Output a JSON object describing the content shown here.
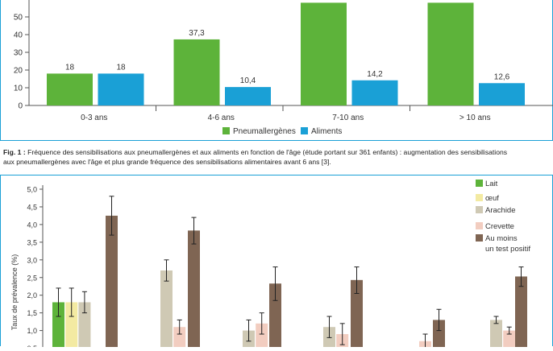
{
  "chart_data": [
    {
      "type": "bar",
      "categories": [
        "0-3 ans",
        "4-6 ans",
        "7-10 ans",
        "> 10 ans"
      ],
      "series": [
        {
          "name": "Pneumallergènes",
          "color": "#5db33a",
          "values": [
            18,
            37.3,
            58,
            58
          ],
          "labels": [
            "18",
            "37,3",
            "",
            ""
          ]
        },
        {
          "name": "Aliments",
          "color": "#1aa0d6",
          "values": [
            18,
            10.4,
            14.2,
            12.6
          ],
          "labels": [
            "18",
            "10,4",
            "14,2",
            "12,6"
          ]
        }
      ],
      "yticks": [
        "0",
        "10",
        "20",
        "30",
        "40",
        "50"
      ],
      "ylim": [
        0,
        58
      ],
      "legend": "bottom-center",
      "grid": false
    },
    {
      "type": "bar",
      "ylabel": "Taux de prévalence (%)",
      "yticks": [
        "0,5",
        "1,0",
        "1,5",
        "2,0",
        "2,5",
        "3,0",
        "3,5",
        "4,0",
        "4,5",
        "5,0"
      ],
      "ylim": [
        0.5,
        5.0
      ],
      "series": [
        {
          "name": "Lait",
          "color": "#5db33a",
          "values": [
            1.8,
            null,
            null,
            null,
            null,
            null
          ],
          "err_low": [
            1.4,
            null,
            null,
            null,
            null,
            null
          ],
          "err_high": [
            2.2,
            null,
            null,
            null,
            null,
            null
          ]
        },
        {
          "name": "œuf",
          "color": "#f3eaa2",
          "values": [
            1.8,
            null,
            null,
            null,
            null,
            null
          ],
          "err_low": [
            1.4,
            null,
            null,
            null,
            null,
            null
          ],
          "err_high": [
            2.2,
            null,
            null,
            null,
            null,
            null
          ]
        },
        {
          "name": "Arachide",
          "color": "#cfc9b4",
          "values": [
            1.8,
            2.7,
            1.0,
            1.1,
            null,
            1.3
          ],
          "err_low": [
            1.5,
            2.4,
            0.7,
            0.8,
            null,
            1.2
          ],
          "err_high": [
            2.1,
            3.0,
            1.3,
            1.4,
            null,
            1.4
          ]
        },
        {
          "name": "Crevette",
          "color": "#f2cdc0",
          "values": [
            null,
            1.1,
            1.2,
            0.9,
            0.7,
            1.0
          ],
          "err_low": [
            null,
            0.9,
            0.9,
            0.6,
            0.5,
            0.9
          ],
          "err_high": [
            null,
            1.3,
            1.5,
            1.2,
            0.9,
            1.1
          ]
        },
        {
          "name": "Au moins un test positif",
          "color": "#7f6553",
          "values": [
            4.25,
            3.83,
            2.33,
            2.43,
            1.3,
            2.53
          ],
          "err_low": [
            3.7,
            3.45,
            1.85,
            2.05,
            1.0,
            2.25
          ],
          "err_high": [
            4.8,
            4.2,
            2.8,
            2.8,
            1.6,
            2.8
          ]
        }
      ],
      "legend_lines": [
        [
          "Lait"
        ],
        [
          "œuf"
        ],
        [
          "Arachide"
        ],
        [
          "Crevette"
        ],
        [
          "Au moins",
          "un test positif"
        ]
      ],
      "legend": "top-right"
    }
  ],
  "caption": {
    "fig": "Fig. 1 :",
    "line1": "Fréquence des sensibilisations aux pneumallergènes et aux aliments en fonction de l'âge (étude portant sur 361 enfants) : augmentation des sensibilisations",
    "line2": "aux pneumallergènes avec l'âge et plus grande fréquence des sensibilisations alimentaires avant 6 ans [3]."
  }
}
